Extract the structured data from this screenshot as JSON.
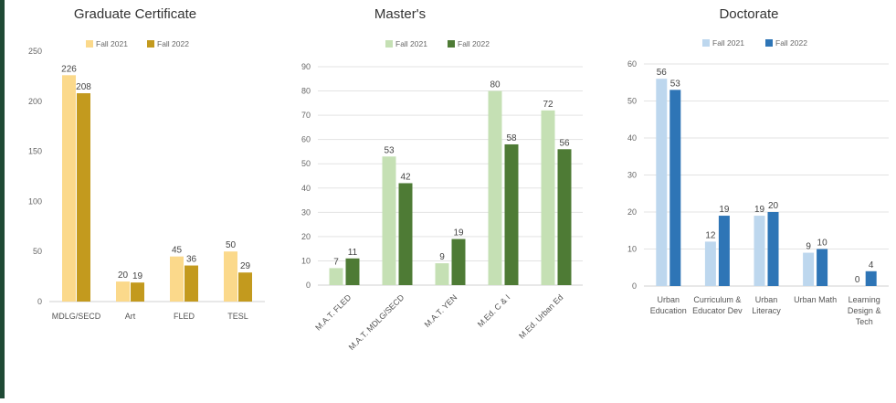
{
  "chart_data": [
    {
      "type": "bar",
      "title": "Graduate Certificate",
      "categories": [
        "MDLG/SECD",
        "Art",
        "FLED",
        "TESL"
      ],
      "series": [
        {
          "name": "Fall 2021",
          "values": [
            226,
            20,
            45,
            50
          ],
          "color": "#fbd98b"
        },
        {
          "name": "Fall 2022",
          "values": [
            208,
            19,
            36,
            29
          ],
          "color": "#c39a1e"
        }
      ],
      "value_labels": [
        [
          "226",
          "20",
          "45",
          "50"
        ],
        [
          "208",
          "19",
          "36",
          "29"
        ]
      ],
      "ylim": [
        0,
        250
      ],
      "yticks": [
        0,
        50,
        100,
        150,
        200,
        250
      ],
      "ytick_labels": [
        "0",
        "50",
        "100",
        "150",
        "200",
        "250"
      ],
      "grid": false,
      "legend_position": "top"
    },
    {
      "type": "bar",
      "title": "Master's",
      "categories": [
        "M.A.T. FLED",
        "M.A.T. MDLG/SECD",
        "M.A.T. YEN",
        "M.Ed. C & I",
        "M.Ed. Urban Ed"
      ],
      "series": [
        {
          "name": "Fall 2021",
          "values": [
            7,
            53,
            9,
            80,
            72
          ],
          "color": "#c5e0b4"
        },
        {
          "name": "Fall 2022",
          "values": [
            11,
            42,
            19,
            58,
            56
          ],
          "color": "#4e7b35"
        }
      ],
      "value_labels": [
        [
          "7",
          "53",
          "9",
          "80",
          "72"
        ],
        [
          "11",
          "42",
          "19",
          "58",
          "56"
        ]
      ],
      "ylim": [
        0,
        90
      ],
      "yticks": [
        0,
        10,
        20,
        30,
        40,
        50,
        60,
        70,
        80,
        90
      ],
      "ytick_labels": [
        "0",
        "10",
        "20",
        "30",
        "40",
        "50",
        "60",
        "70",
        "80",
        "90"
      ],
      "grid": true,
      "legend_position": "top"
    },
    {
      "type": "bar",
      "title": "Doctorate",
      "categories": [
        "Urban Education",
        "Curriculum & Educator Dev",
        "Urban Literacy",
        "Urban Math",
        "Learning Design & Tech"
      ],
      "series": [
        {
          "name": "Fall 2021",
          "values": [
            56,
            12,
            19,
            9,
            0
          ],
          "color": "#bdd7ee"
        },
        {
          "name": "Fall 2022",
          "values": [
            53,
            19,
            20,
            10,
            4
          ],
          "color": "#2e75b6"
        }
      ],
      "value_labels": [
        [
          "56",
          "12",
          "19",
          "9",
          "0"
        ],
        [
          "53",
          "19",
          "20",
          "10",
          "4"
        ]
      ],
      "ylim": [
        0,
        60
      ],
      "yticks": [
        0,
        10,
        20,
        30,
        40,
        50,
        60
      ],
      "ytick_labels": [
        "0",
        "10",
        "20",
        "30",
        "40",
        "50",
        "60"
      ],
      "grid": true,
      "legend_position": "top"
    }
  ],
  "page": {
    "accent_bar_color": "#1f4a35"
  }
}
